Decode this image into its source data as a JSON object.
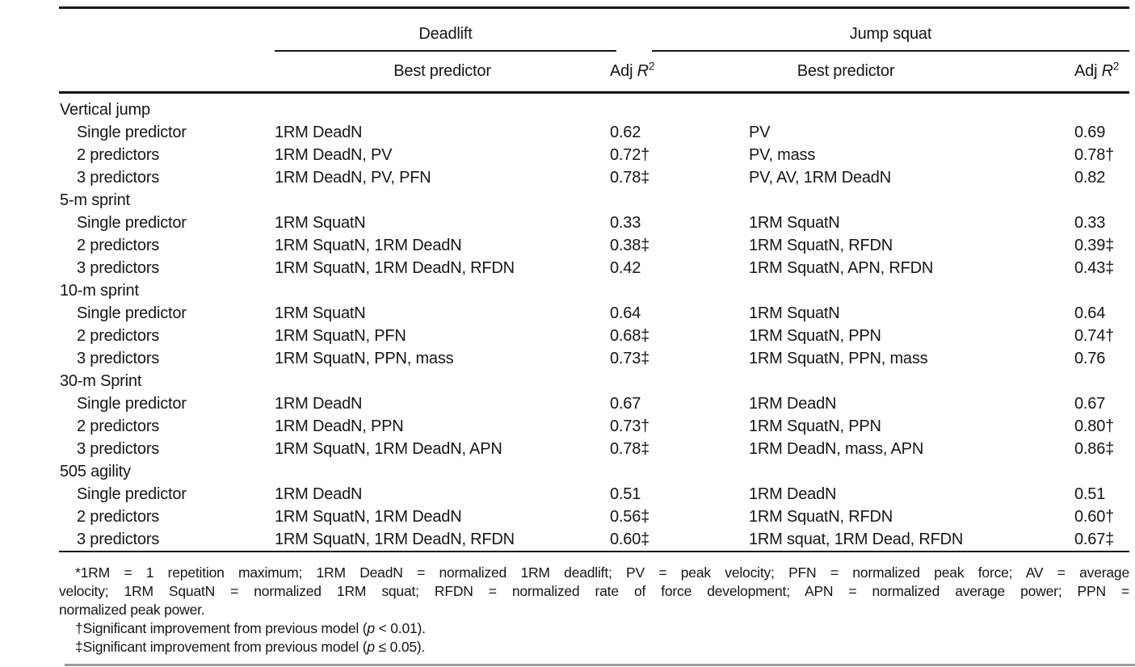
{
  "header": {
    "groups": [
      {
        "label": "Deadlift"
      },
      {
        "label": "Jump squat"
      }
    ],
    "sub": {
      "best_predictor": "Best predictor",
      "adj": "Adj ",
      "r": "R",
      "sup": "2"
    }
  },
  "body": {
    "sections": [
      {
        "label": "Vertical jump",
        "rows": [
          {
            "label": "Single predictor",
            "cells": [
              "1RM DeadN",
              "0.62",
              "PV",
              "0.69"
            ]
          },
          {
            "label": "2 predictors",
            "cells": [
              "1RM DeadN, PV",
              "0.72†",
              "PV, mass",
              "0.78†"
            ]
          },
          {
            "label": "3 predictors",
            "cells": [
              "1RM DeadN, PV, PFN",
              "0.78‡",
              "PV, AV, 1RM DeadN",
              "0.82"
            ]
          }
        ]
      },
      {
        "label": "5-m sprint",
        "rows": [
          {
            "label": "Single predictor",
            "cells": [
              "1RM SquatN",
              "0.33",
              "1RM SquatN",
              "0.33"
            ]
          },
          {
            "label": "2 predictors",
            "cells": [
              "1RM SquatN, 1RM DeadN",
              "0.38‡",
              "1RM SquatN, RFDN",
              "0.39‡"
            ]
          },
          {
            "label": "3 predictors",
            "cells": [
              "1RM SquatN, 1RM DeadN, RFDN",
              "0.42",
              "1RM SquatN, APN, RFDN",
              "0.43‡"
            ]
          }
        ]
      },
      {
        "label": "10-m sprint",
        "rows": [
          {
            "label": "Single predictor",
            "cells": [
              "1RM SquatN",
              "0.64",
              "1RM SquatN",
              "0.64"
            ]
          },
          {
            "label": "2 predictors",
            "cells": [
              "1RM SquatN, PFN",
              "0.68‡",
              "1RM SquatN, PPN",
              "0.74†"
            ]
          },
          {
            "label": "3 predictors",
            "cells": [
              "1RM SquatN, PPN, mass",
              "0.73‡",
              "1RM SquatN, PPN, mass",
              "0.76"
            ]
          }
        ]
      },
      {
        "label": "30-m Sprint",
        "rows": [
          {
            "label": "Single predictor",
            "cells": [
              "1RM DeadN",
              "0.67",
              "1RM DeadN",
              "0.67"
            ]
          },
          {
            "label": "2 predictors",
            "cells": [
              "1RM DeadN, PPN",
              "0.73†",
              "1RM SquatN, PPN",
              "0.80†"
            ]
          },
          {
            "label": "3 predictors",
            "cells": [
              "1RM SquatN, 1RM DeadN, APN",
              "0.78‡",
              "1RM DeadN, mass, APN",
              "0.86‡"
            ]
          }
        ]
      },
      {
        "label": "505 agility",
        "rows": [
          {
            "label": "Single predictor",
            "cells": [
              "1RM DeadN",
              "0.51",
              "1RM DeadN",
              "0.51"
            ]
          },
          {
            "label": "2 predictors",
            "cells": [
              "1RM SquatN, 1RM DeadN",
              "0.56‡",
              "1RM SquatN, RFDN",
              "0.60†"
            ]
          },
          {
            "label": "3 predictors",
            "cells": [
              "1RM SquatN, 1RM DeadN, RFDN",
              "0.60‡",
              "1RM squat, 1RM Dead, RFDN",
              "0.67‡"
            ]
          }
        ]
      }
    ]
  },
  "footnotes": {
    "definition_lines": [
      "*1RM = 1 repetition maximum; 1RM DeadN = normalized 1RM deadlift; PV = peak velocity; PFN = normalized peak force; AV = average",
      "velocity; 1RM SquatN = normalized 1RM squat; RFDN = normalized rate of force development; APN = normalized average power; PPN =",
      "normalized peak power."
    ],
    "dagger": {
      "prefix": "†Significant improvement from previous model (",
      "p": "p",
      "suffix": " < 0.01)."
    },
    "double_dagger": {
      "prefix": "‡Significant improvement from previous model (",
      "p": "p",
      "suffix": " ≤ 0.05)."
    }
  },
  "colors": {
    "text": "#161616",
    "rule": "#161616",
    "bottom_rule": "#9c9c9c",
    "background": "#ffffff"
  }
}
